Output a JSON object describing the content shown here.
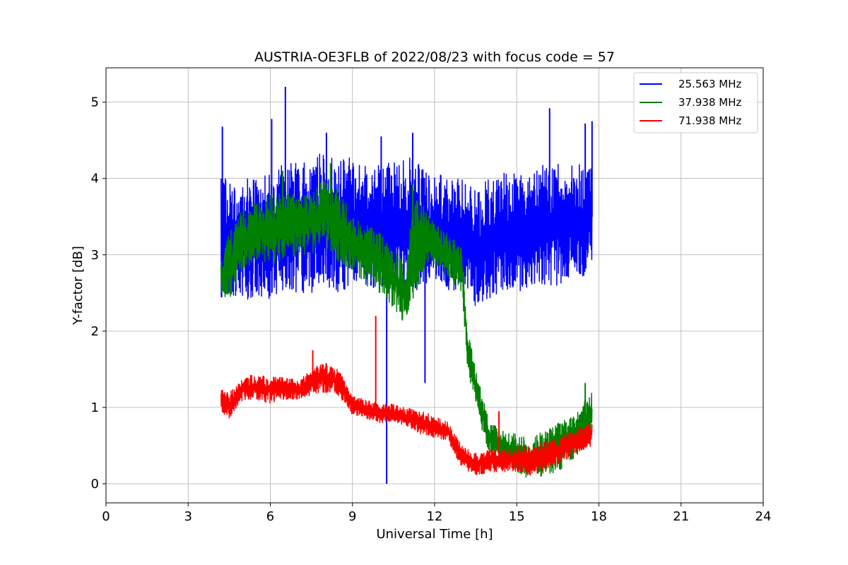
{
  "chart_data": {
    "type": "line",
    "title": "AUSTRIA-OE3FLB of 2022/08/23 with focus code = 57",
    "xlabel": "Universal Time [h]",
    "ylabel": "Y-factor [dB]",
    "xlim": [
      0,
      24
    ],
    "ylim": [
      -0.25,
      5.45
    ],
    "xticks": [
      0,
      3,
      6,
      9,
      12,
      15,
      18,
      21,
      24
    ],
    "yticks": [
      0,
      1,
      2,
      3,
      4,
      5
    ],
    "grid": true,
    "legend_position": "top-right",
    "series": [
      {
        "name": "25.563 MHz",
        "color": "#0000ff",
        "x": [
          4.2,
          4.5,
          5.0,
          5.5,
          6.0,
          6.5,
          7.0,
          7.5,
          8.0,
          8.5,
          9.0,
          9.5,
          10.0,
          10.5,
          11.0,
          11.5,
          12.0,
          12.5,
          13.0,
          13.5,
          14.0,
          14.5,
          15.0,
          15.5,
          16.0,
          16.5,
          17.0,
          17.5,
          17.75
        ],
        "low": [
          2.4,
          2.5,
          2.4,
          2.4,
          2.4,
          2.5,
          2.5,
          2.5,
          2.6,
          2.5,
          2.6,
          2.6,
          2.5,
          2.6,
          2.6,
          2.5,
          2.6,
          2.5,
          2.4,
          2.3,
          2.4,
          2.5,
          2.5,
          2.6,
          2.6,
          2.6,
          2.7,
          2.7,
          2.8
        ],
        "high": [
          4.1,
          4.0,
          4.0,
          4.0,
          4.1,
          4.2,
          4.2,
          4.3,
          4.4,
          4.3,
          4.3,
          4.2,
          4.2,
          4.2,
          4.3,
          4.2,
          4.1,
          4.0,
          4.0,
          3.9,
          4.0,
          4.1,
          4.1,
          4.1,
          4.2,
          4.2,
          4.2,
          4.2,
          4.2
        ],
        "spikes": [
          [
            4.25,
            4.68
          ],
          [
            6.05,
            4.78
          ],
          [
            6.55,
            5.2
          ],
          [
            8.05,
            4.6
          ],
          [
            10.05,
            4.55
          ],
          [
            11.2,
            4.6
          ],
          [
            16.2,
            4.92
          ],
          [
            17.5,
            4.72
          ],
          [
            17.75,
            4.75
          ],
          [
            10.25,
            0.0
          ],
          [
            11.65,
            1.32
          ]
        ]
      },
      {
        "name": "37.938 MHz",
        "color": "#008000",
        "x": [
          4.2,
          4.5,
          5.0,
          5.5,
          6.0,
          6.5,
          7.0,
          7.5,
          8.0,
          8.5,
          9.0,
          9.5,
          10.0,
          10.5,
          10.9,
          11.3,
          11.7,
          12.0,
          12.5,
          13.0,
          13.2,
          13.5,
          13.8,
          14.0,
          14.5,
          15.0,
          15.5,
          16.0,
          16.5,
          17.0,
          17.5,
          17.75
        ],
        "low": [
          2.5,
          2.4,
          2.8,
          2.9,
          2.9,
          2.9,
          3.0,
          3.0,
          3.1,
          2.9,
          2.8,
          2.6,
          2.5,
          2.3,
          2.1,
          2.5,
          2.9,
          2.8,
          2.7,
          2.5,
          1.5,
          1.0,
          0.6,
          0.4,
          0.25,
          0.15,
          0.05,
          0.1,
          0.15,
          0.3,
          0.5,
          0.7
        ],
        "high": [
          2.9,
          3.3,
          3.6,
          3.7,
          3.8,
          3.8,
          3.8,
          3.9,
          4.0,
          3.9,
          3.5,
          3.4,
          3.3,
          3.1,
          2.9,
          3.8,
          3.6,
          3.4,
          3.3,
          3.1,
          2.1,
          1.5,
          1.1,
          0.8,
          0.7,
          0.65,
          0.6,
          0.7,
          0.8,
          0.9,
          1.1,
          1.2
        ],
        "spikes": [
          [
            6.45,
            4.1
          ],
          [
            8.2,
            4.2
          ],
          [
            11.2,
            3.92
          ],
          [
            17.5,
            1.32
          ]
        ]
      },
      {
        "name": "71.938 MHz",
        "color": "#ff0000",
        "x": [
          4.2,
          4.5,
          5.0,
          5.5,
          6.0,
          6.5,
          7.0,
          7.5,
          8.0,
          8.5,
          9.0,
          9.5,
          10.0,
          10.5,
          11.0,
          11.5,
          12.0,
          12.5,
          13.0,
          13.5,
          14.0,
          14.5,
          15.0,
          15.5,
          16.0,
          16.5,
          17.0,
          17.5,
          17.75
        ],
        "low": [
          0.95,
          0.85,
          1.1,
          1.1,
          1.05,
          1.1,
          1.1,
          1.15,
          1.2,
          1.15,
          0.9,
          0.85,
          0.8,
          0.8,
          0.75,
          0.65,
          0.6,
          0.55,
          0.2,
          0.1,
          0.15,
          0.15,
          0.15,
          0.1,
          0.15,
          0.25,
          0.35,
          0.45,
          0.5
        ],
        "high": [
          1.25,
          1.2,
          1.4,
          1.45,
          1.4,
          1.4,
          1.35,
          1.5,
          1.6,
          1.5,
          1.15,
          1.1,
          1.05,
          1.05,
          1.0,
          0.95,
          0.9,
          0.8,
          0.5,
          0.4,
          0.45,
          0.45,
          0.5,
          0.5,
          0.55,
          0.6,
          0.7,
          0.75,
          0.85
        ],
        "spikes": [
          [
            7.55,
            1.75
          ],
          [
            9.85,
            2.2
          ],
          [
            14.35,
            0.95
          ]
        ]
      }
    ]
  }
}
